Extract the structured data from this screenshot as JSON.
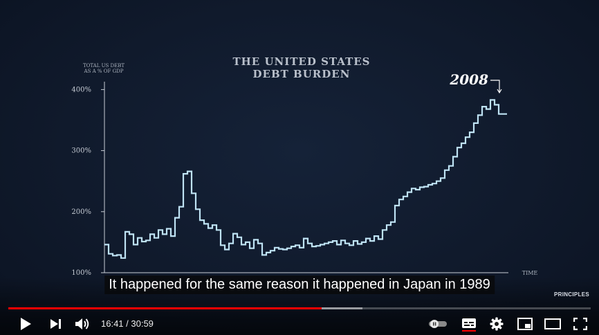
{
  "chart_data": {
    "type": "line",
    "title": [
      "THE UNITED STATES",
      "DEBT BURDEN"
    ],
    "ylabel": [
      "TOTAL US DEBT",
      "AS A % OF GDP"
    ],
    "xlabel": "TIME",
    "yticks": [
      "100%",
      "200%",
      "300%",
      "400%"
    ],
    "ylim": [
      100,
      420
    ],
    "annotation": {
      "label": "2008",
      "x": 95
    },
    "series": [
      {
        "color": "#bfe3f4",
        "x": [
          0,
          1,
          2,
          3,
          4,
          5,
          6,
          7,
          8,
          9,
          10,
          11,
          12,
          13,
          14,
          15,
          16,
          17,
          18,
          19,
          20,
          21,
          22,
          23,
          24,
          25,
          26,
          27,
          28,
          29,
          30,
          31,
          32,
          33,
          34,
          35,
          36,
          37,
          38,
          39,
          40,
          41,
          42,
          43,
          44,
          45,
          46,
          47,
          48,
          49,
          50,
          51,
          52,
          53,
          54,
          55,
          56,
          57,
          58,
          59,
          60,
          61,
          62,
          63,
          64,
          65,
          66,
          67,
          68,
          69,
          70,
          71,
          72,
          73,
          74,
          75,
          76,
          77,
          78,
          79,
          80,
          81,
          82,
          83,
          84,
          85,
          86,
          87,
          88,
          89,
          90,
          91,
          92,
          93,
          94,
          95,
          96,
          97
        ],
        "values": [
          146,
          131,
          128,
          129,
          124,
          167,
          163,
          146,
          157,
          151,
          153,
          163,
          157,
          170,
          163,
          172,
          160,
          190,
          208,
          262,
          266,
          230,
          204,
          186,
          180,
          173,
          178,
          170,
          145,
          138,
          148,
          164,
          158,
          146,
          150,
          140,
          154,
          148,
          129,
          133,
          136,
          141,
          139,
          138,
          140,
          143,
          145,
          141,
          156,
          148,
          143,
          144,
          146,
          148,
          150,
          152,
          146,
          153,
          148,
          145,
          152,
          147,
          150,
          156,
          152,
          160,
          155,
          170,
          178,
          183,
          210,
          220,
          225,
          232,
          238,
          236,
          240,
          241,
          244,
          246,
          250,
          255,
          268,
          275,
          290,
          305,
          312,
          322,
          330,
          345,
          358,
          372,
          368,
          383,
          375,
          360,
          360,
          360
        ]
      }
    ]
  },
  "caption": "It happened for the same reason it happened in Japan in 1989",
  "brand": "PRINCIPLES",
  "player": {
    "current_time": "16:41",
    "duration": "30:59",
    "time_display": "16:41 / 30:59",
    "progress_fraction": 0.538,
    "buffer_fraction": 0.608,
    "accent": "#ff0000",
    "icons": [
      "play-icon",
      "next-icon",
      "volume-icon",
      "autoplay-toggle-icon",
      "subtitles-icon",
      "settings-icon",
      "miniplayer-icon",
      "theater-mode-icon",
      "fullscreen-icon"
    ]
  }
}
